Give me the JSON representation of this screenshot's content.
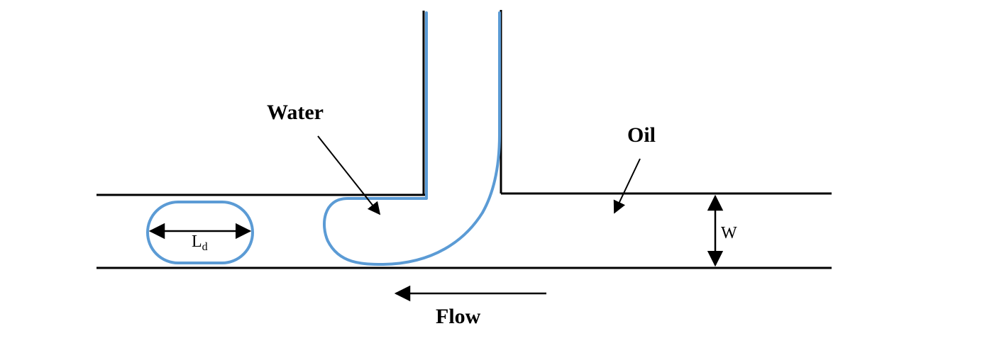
{
  "labels": {
    "water": "Water",
    "oil": "Oil",
    "width": "W",
    "droplet_length_main": "L",
    "droplet_length_sub": "d",
    "flow": "Flow"
  },
  "colors": {
    "wall": "#000000",
    "interface": "#5b9bd5",
    "background": "#ffffff"
  }
}
